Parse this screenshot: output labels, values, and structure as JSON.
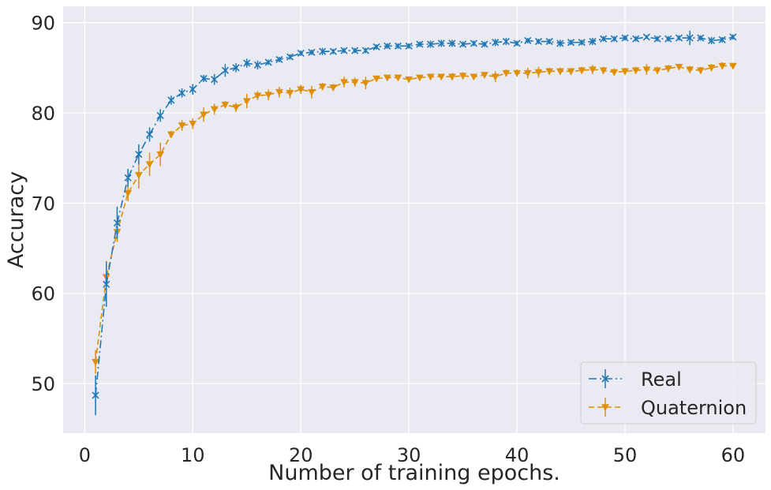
{
  "chart_data": {
    "type": "line",
    "title": "",
    "xlabel": "Number of training epochs.",
    "ylabel": "Accuracy",
    "xlim": [
      -2,
      63
    ],
    "ylim": [
      44.5,
      91.8
    ],
    "xticks": [
      0,
      10,
      20,
      30,
      40,
      50,
      60
    ],
    "yticks": [
      50,
      60,
      70,
      80,
      90
    ],
    "grid": true,
    "legend_position": "lower-right",
    "background_color": "#eaeaf2",
    "x": [
      1,
      2,
      3,
      4,
      5,
      6,
      7,
      8,
      9,
      10,
      11,
      12,
      13,
      14,
      15,
      16,
      17,
      18,
      19,
      20,
      21,
      22,
      23,
      24,
      25,
      26,
      27,
      28,
      29,
      30,
      31,
      32,
      33,
      34,
      35,
      36,
      37,
      38,
      39,
      40,
      41,
      42,
      43,
      44,
      45,
      46,
      47,
      48,
      49,
      50,
      51,
      52,
      53,
      54,
      55,
      56,
      57,
      58,
      59,
      60
    ],
    "series": [
      {
        "name": "Real",
        "color": "#1f77b4",
        "line_style": "dash-dot",
        "marker": "x",
        "values": [
          48.7,
          61.0,
          67.8,
          72.8,
          75.4,
          77.6,
          79.7,
          81.4,
          82.2,
          82.6,
          83.8,
          83.7,
          84.7,
          85.0,
          85.5,
          85.3,
          85.6,
          85.9,
          86.2,
          86.6,
          86.7,
          86.8,
          86.8,
          86.9,
          86.9,
          86.9,
          87.3,
          87.4,
          87.4,
          87.4,
          87.6,
          87.6,
          87.7,
          87.7,
          87.6,
          87.7,
          87.6,
          87.8,
          87.9,
          87.7,
          88.0,
          87.9,
          87.9,
          87.7,
          87.8,
          87.8,
          87.9,
          88.2,
          88.2,
          88.3,
          88.2,
          88.4,
          88.2,
          88.2,
          88.3,
          88.3,
          88.3,
          88.0,
          88.1,
          88.4
        ],
        "errors": [
          2.2,
          2.5,
          1.8,
          1.0,
          1.1,
          0.8,
          0.7,
          0.5,
          0.5,
          0.6,
          0.4,
          0.6,
          0.7,
          0.5,
          0.5,
          0.5,
          0.3,
          0.3,
          0.3,
          0.3,
          0.3,
          0.4,
          0.3,
          0.3,
          0.3,
          0.3,
          0.3,
          0.3,
          0.3,
          0.3,
          0.3,
          0.4,
          0.4,
          0.4,
          0.3,
          0.3,
          0.3,
          0.4,
          0.4,
          0.3,
          0.3,
          0.3,
          0.3,
          0.4,
          0.3,
          0.3,
          0.4,
          0.3,
          0.3,
          0.3,
          0.3,
          0.2,
          0.3,
          0.3,
          0.3,
          0.8,
          0.3,
          0.4,
          0.3,
          0.3
        ]
      },
      {
        "name": "Quaternion",
        "color": "#de8f05",
        "line_style": "dashed",
        "marker": "triangle-down",
        "values": [
          52.4,
          61.8,
          66.8,
          71.1,
          73.1,
          74.3,
          75.4,
          77.6,
          78.6,
          78.8,
          79.8,
          80.4,
          80.9,
          80.6,
          81.3,
          81.9,
          82.0,
          82.3,
          82.2,
          82.6,
          82.3,
          82.9,
          82.8,
          83.4,
          83.4,
          83.3,
          83.8,
          83.9,
          83.9,
          83.7,
          83.9,
          84.0,
          84.0,
          84.0,
          84.1,
          84.0,
          84.2,
          84.0,
          84.4,
          84.4,
          84.4,
          84.5,
          84.6,
          84.6,
          84.6,
          84.7,
          84.8,
          84.7,
          84.5,
          84.6,
          84.7,
          84.8,
          84.7,
          84.9,
          85.1,
          84.8,
          84.7,
          85.0,
          85.2,
          85.2
        ],
        "errors": [
          1.3,
          1.8,
          1.1,
          0.9,
          1.5,
          1.3,
          1.3,
          0.4,
          0.6,
          0.6,
          0.8,
          0.6,
          0.4,
          0.5,
          0.8,
          0.5,
          0.6,
          0.6,
          0.6,
          0.5,
          0.7,
          0.4,
          0.4,
          0.6,
          0.5,
          0.7,
          0.3,
          0.3,
          0.3,
          0.3,
          0.3,
          0.3,
          0.3,
          0.4,
          0.4,
          0.3,
          0.3,
          0.6,
          0.4,
          0.4,
          0.6,
          0.6,
          0.4,
          0.4,
          0.4,
          0.4,
          0.5,
          0.4,
          0.4,
          0.4,
          0.4,
          0.6,
          0.4,
          0.4,
          0.3,
          0.4,
          0.4,
          0.4,
          0.4,
          0.3
        ]
      }
    ]
  }
}
